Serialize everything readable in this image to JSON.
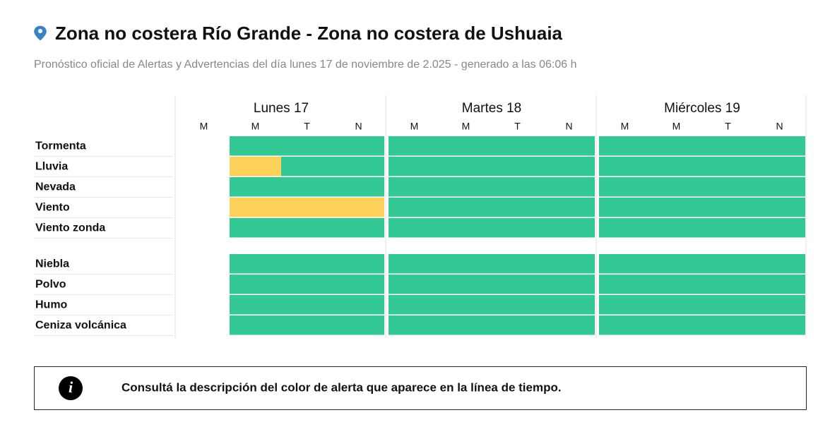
{
  "header": {
    "title": "Zona no costera Río Grande - Zona no costera de Ushuaia",
    "subtitle": "Pronóstico oficial de Alertas y Advertencias del día lunes 17 de noviembre de 2.025 - generado a las 06:06 h"
  },
  "days": [
    {
      "label": "Lunes 17",
      "periods": [
        "M",
        "M",
        "T",
        "N"
      ]
    },
    {
      "label": "Martes 18",
      "periods": [
        "M",
        "M",
        "T",
        "N"
      ]
    },
    {
      "label": "Miércoles 19",
      "periods": [
        "M",
        "M",
        "T",
        "N"
      ]
    }
  ],
  "row_groups": [
    [
      {
        "label": "Tormenta",
        "cells": [
          null,
          "#34c895",
          "#34c895",
          "#34c895",
          "#34c895",
          "#34c895",
          "#34c895",
          "#34c895",
          "#34c895",
          "#34c895",
          "#34c895",
          "#34c895"
        ]
      },
      {
        "label": "Lluvia",
        "cells": [
          null,
          "#fdd05a",
          "#34c895",
          "#34c895",
          "#34c895",
          "#34c895",
          "#34c895",
          "#34c895",
          "#34c895",
          "#34c895",
          "#34c895",
          "#34c895"
        ]
      },
      {
        "label": "Nevada",
        "cells": [
          null,
          "#34c895",
          "#34c895",
          "#34c895",
          "#34c895",
          "#34c895",
          "#34c895",
          "#34c895",
          "#34c895",
          "#34c895",
          "#34c895",
          "#34c895"
        ]
      },
      {
        "label": "Viento",
        "cells": [
          null,
          "#fdd05a",
          "#fdd05a",
          "#fdd05a",
          "#34c895",
          "#34c895",
          "#34c895",
          "#34c895",
          "#34c895",
          "#34c895",
          "#34c895",
          "#34c895"
        ]
      },
      {
        "label": "Viento zonda",
        "cells": [
          null,
          "#34c895",
          "#34c895",
          "#34c895",
          "#34c895",
          "#34c895",
          "#34c895",
          "#34c895",
          "#34c895",
          "#34c895",
          "#34c895",
          "#34c895"
        ]
      }
    ],
    [
      {
        "label": "Niebla",
        "cells": [
          null,
          "#34c895",
          "#34c895",
          "#34c895",
          "#34c895",
          "#34c895",
          "#34c895",
          "#34c895",
          "#34c895",
          "#34c895",
          "#34c895",
          "#34c895"
        ]
      },
      {
        "label": "Polvo",
        "cells": [
          null,
          "#34c895",
          "#34c895",
          "#34c895",
          "#34c895",
          "#34c895",
          "#34c895",
          "#34c895",
          "#34c895",
          "#34c895",
          "#34c895",
          "#34c895"
        ]
      },
      {
        "label": "Humo",
        "cells": [
          null,
          "#34c895",
          "#34c895",
          "#34c895",
          "#34c895",
          "#34c895",
          "#34c895",
          "#34c895",
          "#34c895",
          "#34c895",
          "#34c895",
          "#34c895"
        ]
      },
      {
        "label": "Ceniza volcánica",
        "cells": [
          null,
          "#34c895",
          "#34c895",
          "#34c895",
          "#34c895",
          "#34c895",
          "#34c895",
          "#34c895",
          "#34c895",
          "#34c895",
          "#34c895",
          "#34c895"
        ]
      }
    ]
  ],
  "info": "Consultá la descripción del color de alerta que aparece en la línea de tiempo."
}
